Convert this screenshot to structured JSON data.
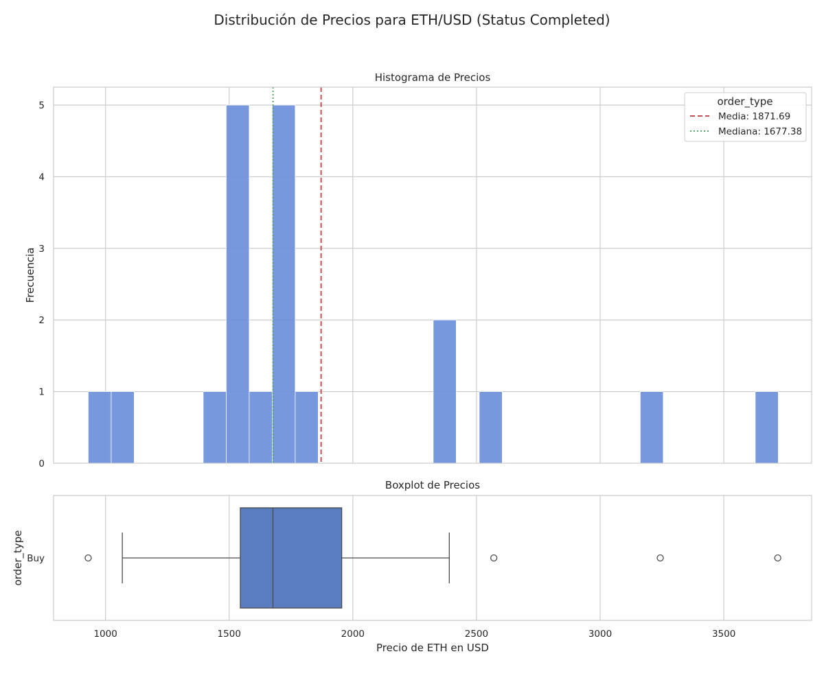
{
  "figure": {
    "title": "Distribución de Precios para ETH/USD (Status Completed)"
  },
  "chart_data": [
    {
      "type": "histogram",
      "title": "Histograma de Precios",
      "xlabel": "",
      "ylabel": "Frecuencia",
      "xlim": [
        790,
        3855
      ],
      "ylim": [
        0,
        5.25
      ],
      "yticks": [
        0,
        1,
        2,
        3,
        4,
        5
      ],
      "grid": true,
      "bar_color": "#6b8fd9",
      "bins": [
        {
          "x0": 930,
          "x1": 1023,
          "count": 1
        },
        {
          "x0": 1023,
          "x1": 1116,
          "count": 1
        },
        {
          "x0": 1116,
          "x1": 1209,
          "count": 0
        },
        {
          "x0": 1209,
          "x1": 1302,
          "count": 0
        },
        {
          "x0": 1302,
          "x1": 1395,
          "count": 0
        },
        {
          "x0": 1395,
          "x1": 1488,
          "count": 1
        },
        {
          "x0": 1488,
          "x1": 1581,
          "count": 5
        },
        {
          "x0": 1581,
          "x1": 1674,
          "count": 1
        },
        {
          "x0": 1674,
          "x1": 1767,
          "count": 5
        },
        {
          "x0": 1767,
          "x1": 1860,
          "count": 1
        },
        {
          "x0": 1860,
          "x1": 1953,
          "count": 0
        },
        {
          "x0": 1953,
          "x1": 2046,
          "count": 0
        },
        {
          "x0": 2046,
          "x1": 2139,
          "count": 0
        },
        {
          "x0": 2139,
          "x1": 2232,
          "count": 0
        },
        {
          "x0": 2232,
          "x1": 2325,
          "count": 0
        },
        {
          "x0": 2325,
          "x1": 2418,
          "count": 2
        },
        {
          "x0": 2418,
          "x1": 2511,
          "count": 0
        },
        {
          "x0": 2511,
          "x1": 2604,
          "count": 1
        },
        {
          "x0": 2604,
          "x1": 2697,
          "count": 0
        },
        {
          "x0": 2697,
          "x1": 2790,
          "count": 0
        },
        {
          "x0": 2790,
          "x1": 2883,
          "count": 0
        },
        {
          "x0": 2883,
          "x1": 2976,
          "count": 0
        },
        {
          "x0": 2976,
          "x1": 3069,
          "count": 0
        },
        {
          "x0": 3069,
          "x1": 3162,
          "count": 0
        },
        {
          "x0": 3162,
          "x1": 3255,
          "count": 1
        },
        {
          "x0": 3255,
          "x1": 3348,
          "count": 0
        },
        {
          "x0": 3348,
          "x1": 3441,
          "count": 0
        },
        {
          "x0": 3441,
          "x1": 3534,
          "count": 0
        },
        {
          "x0": 3534,
          "x1": 3627,
          "count": 0
        },
        {
          "x0": 3627,
          "x1": 3720,
          "count": 1
        }
      ],
      "reference_lines": [
        {
          "label": "Media: 1871.69",
          "value": 1871.69,
          "color": "#c44e52",
          "style": "dashed"
        },
        {
          "label": "Mediana: 1677.38",
          "value": 1677.38,
          "color": "#55a868",
          "style": "dotted"
        }
      ],
      "legend": {
        "title": "order_type",
        "placement": "top-right"
      }
    },
    {
      "type": "boxplot",
      "title": "Boxplot de Precios",
      "xlabel": "Precio de ETH en USD",
      "ylabel": "order_type",
      "xlim": [
        790,
        3855
      ],
      "xticks": [
        1000,
        1500,
        2000,
        2500,
        3000,
        3500
      ],
      "grid": true,
      "box_color": "#5a7dc2",
      "category": "Buy",
      "whisker_low": 1068,
      "q1": 1545,
      "median": 1677,
      "q3": 1955,
      "whisker_high": 2390,
      "outliers": [
        930,
        2570,
        3243,
        3718
      ]
    }
  ]
}
